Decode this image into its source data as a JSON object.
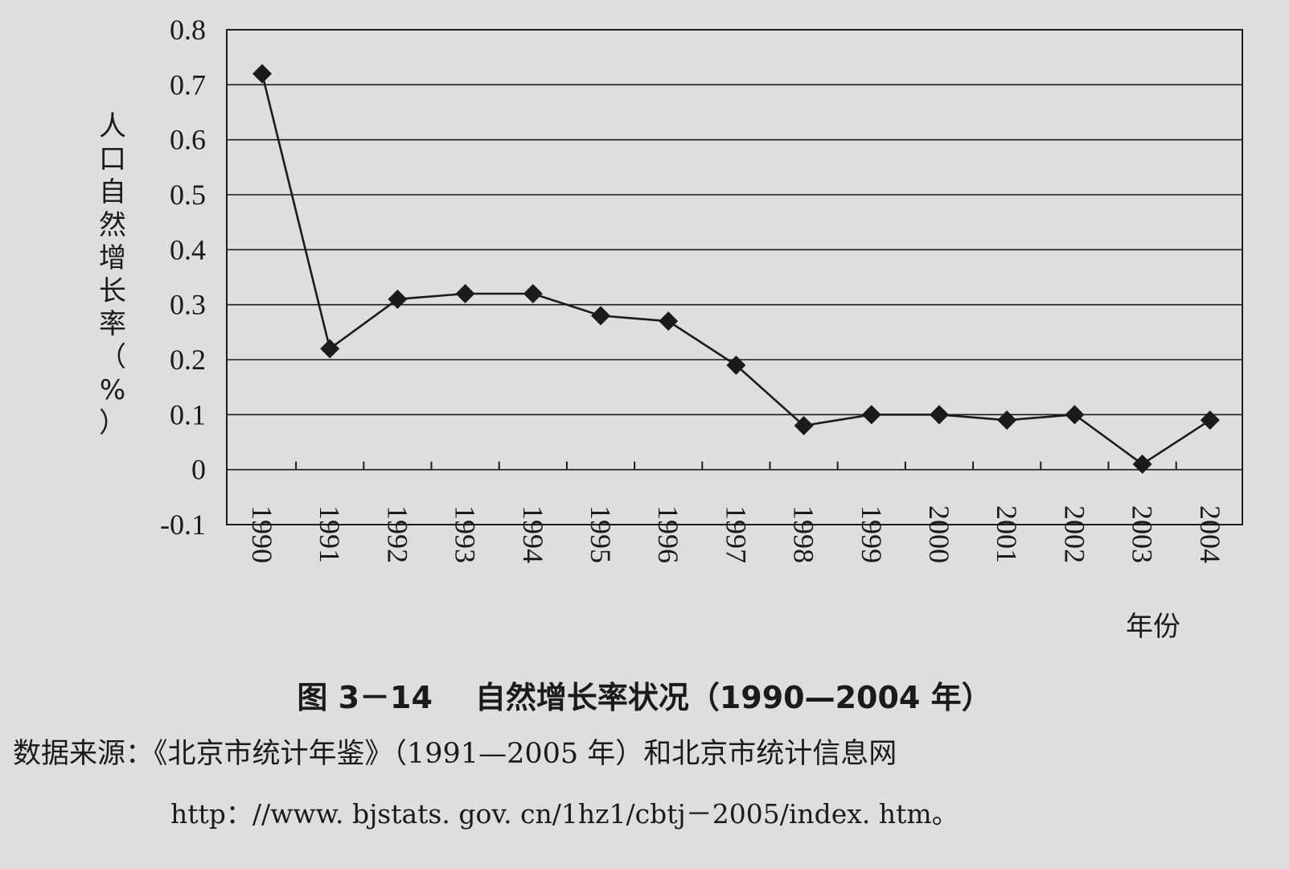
{
  "chart_data": {
    "type": "line",
    "categories": [
      "1990",
      "1991",
      "1992",
      "1993",
      "1994",
      "1995",
      "1996",
      "1997",
      "1998",
      "1999",
      "2000",
      "2001",
      "2002",
      "2003",
      "2004"
    ],
    "series": [
      {
        "values": [
          0.72,
          0.22,
          0.31,
          0.32,
          0.32,
          0.28,
          0.27,
          0.19,
          0.08,
          0.1,
          0.1,
          0.09,
          0.1,
          0.01,
          0.09
        ]
      }
    ],
    "ylim": [
      -0.1,
      0.8
    ],
    "yticks": [
      "0.8",
      "0.7",
      "0.6",
      "0.5",
      "0.4",
      "0.3",
      "0.2",
      "0.1",
      "0",
      "-0.1"
    ],
    "ytick_values": [
      0.8,
      0.7,
      0.6,
      0.5,
      0.4,
      0.3,
      0.2,
      0.1,
      0,
      -0.1
    ],
    "ylabel": "人口自然增长率（%）",
    "xlabel": "年份",
    "grid": true,
    "marker": "diamond",
    "line_color": "#1b1b1b"
  },
  "caption": "图 3－14    自然增长率状况（1990—2004 年）",
  "source": "数据来源：《北京市统计年鉴》（1991—2005 年）和北京市统计信息网",
  "url": "http：//www. bjstats. gov. cn/1hz1/cbtj－2005/index. htm。"
}
